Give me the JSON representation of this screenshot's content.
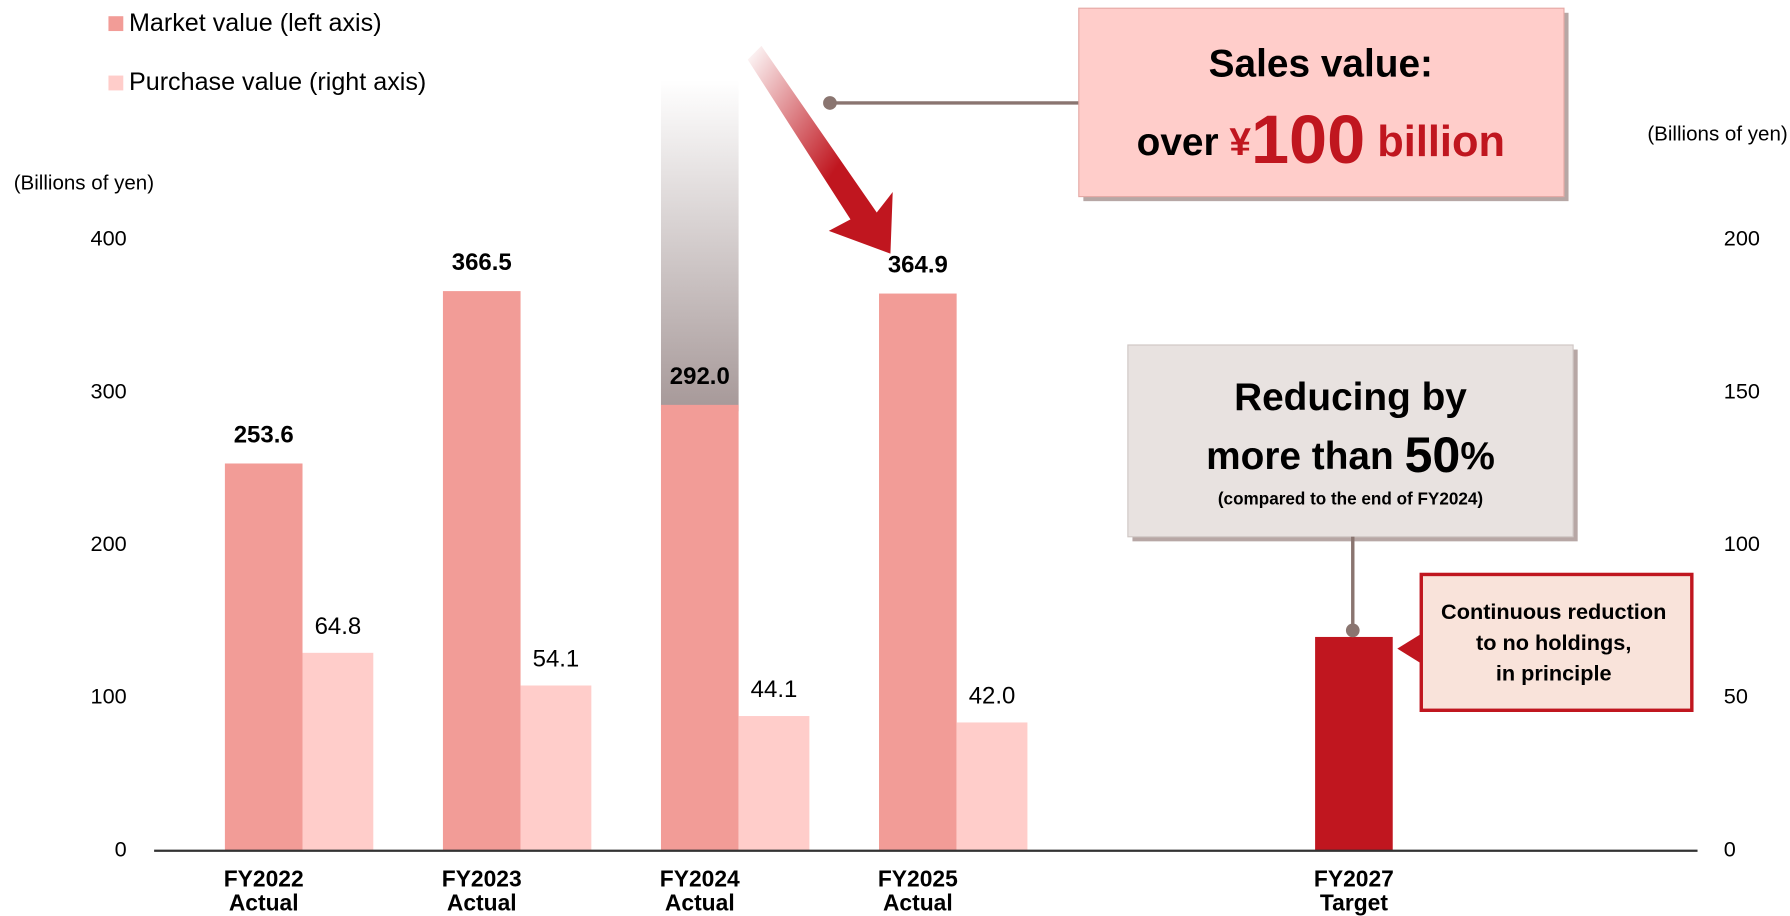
{
  "chart_data": {
    "type": "bar",
    "categories": [
      [
        "FY2022",
        "Actual"
      ],
      [
        "FY2023",
        "Actual"
      ],
      [
        "FY2024",
        "Actual"
      ],
      [
        "FY2025",
        "Actual"
      ],
      null,
      [
        "FY2027",
        "Target"
      ]
    ],
    "series": [
      {
        "name": "Market value (left axis)",
        "color": "#f29c97",
        "axis": "y",
        "bar_colors": [
          "#f29c97",
          "#f29c97",
          "#f29c97",
          "#f29c97",
          null,
          "#c0161f"
        ],
        "values": [
          253.6,
          366.5,
          292.0,
          364.9,
          null,
          140
        ],
        "value_labels": [
          "253.6",
          "366.5",
          "292.0",
          "364.9",
          null,
          null
        ]
      },
      {
        "name": "Purchase value (right axis)",
        "color": "#ffcdca",
        "axis": "y2",
        "values": [
          64.8,
          54.1,
          44.1,
          42.0,
          null,
          null
        ],
        "value_labels": [
          "64.8",
          "54.1",
          "44.1",
          "42.0",
          null,
          null
        ]
      }
    ],
    "ylabel": "(Billions of yen)",
    "y2label": "(Billions of yen)",
    "ylim": [
      0,
      400
    ],
    "yticks": [
      0,
      100,
      200,
      300,
      400
    ],
    "y2lim": [
      0,
      200
    ],
    "y2ticks": [
      0,
      50,
      100,
      150,
      200
    ],
    "annotations": {
      "sales": {
        "line1": "Sales value:",
        "pre": "over ",
        "yen": "¥",
        "num": "100",
        "unit": " billion"
      },
      "reduce": {
        "line1": "Reducing by",
        "pre": "more than ",
        "num": "50",
        "unit": "%",
        "note": "(compared to the end of FY2024)"
      },
      "target": [
        "Continuous reduction",
        "to no holdings,",
        "in principle"
      ]
    }
  }
}
